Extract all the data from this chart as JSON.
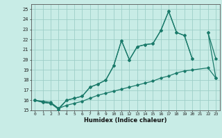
{
  "title": "",
  "xlabel": "Humidex (Indice chaleur)",
  "x": [
    0,
    1,
    2,
    3,
    4,
    5,
    6,
    7,
    8,
    9,
    10,
    11,
    12,
    13,
    14,
    15,
    16,
    17,
    18,
    19,
    20,
    22,
    23
  ],
  "line1": [
    16.0,
    15.8,
    15.7,
    15.1,
    16.0,
    16.2,
    16.4,
    17.3,
    17.6,
    18.0,
    19.4,
    21.9,
    20.0,
    21.3,
    21.5,
    21.6,
    22.9,
    24.8,
    22.7,
    22.4,
    20.1,
    22.7,
    18.2
  ],
  "line2": [
    16.0,
    15.8,
    15.7,
    15.2,
    16.0,
    16.2,
    16.4,
    17.3,
    17.6,
    18.0,
    19.4,
    21.9,
    20.0,
    21.3,
    21.5,
    21.6,
    22.9,
    24.8,
    22.7,
    22.4,
    20.1,
    22.7,
    20.1
  ],
  "line3": [
    16.0,
    15.9,
    15.8,
    15.2,
    15.5,
    15.7,
    15.9,
    16.2,
    16.5,
    16.7,
    16.9,
    17.1,
    17.3,
    17.5,
    17.7,
    17.9,
    18.2,
    18.4,
    18.7,
    18.9,
    19.0,
    19.2,
    18.2
  ],
  "bg_color": "#c8ece6",
  "grid_color": "#9ecfc7",
  "line_color": "#1a7a6a",
  "xlim": [
    -0.5,
    23.5
  ],
  "ylim": [
    15.0,
    25.5
  ],
  "yticks": [
    15,
    16,
    17,
    18,
    19,
    20,
    21,
    22,
    23,
    24,
    25
  ],
  "xticks": [
    0,
    1,
    2,
    3,
    4,
    5,
    6,
    7,
    8,
    9,
    10,
    11,
    12,
    13,
    14,
    15,
    16,
    17,
    18,
    19,
    20,
    21,
    22,
    23
  ]
}
